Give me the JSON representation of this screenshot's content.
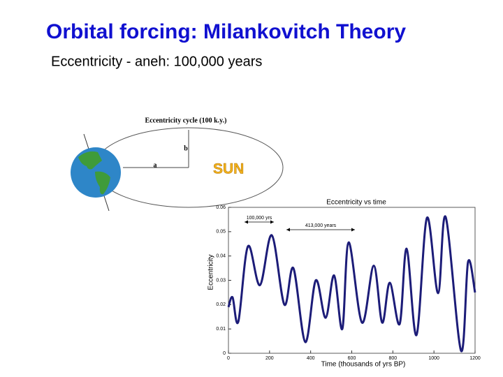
{
  "slide": {
    "title": "Orbital forcing: Milankovitch Theory",
    "subtitle": "Eccentricity - aneh: 100,000 years"
  },
  "diagram": {
    "label": "Eccentricity cycle (100 k.y.)",
    "a": "a",
    "b": "b",
    "sun": "SUN"
  },
  "chart_data": {
    "type": "line",
    "title": "Eccentricity vs time",
    "xlabel": "Time (thousands of yrs BP)",
    "ylabel": "Eccentricity",
    "x": [
      0,
      20,
      48,
      95,
      153,
      211,
      272,
      316,
      374,
      425,
      473,
      514,
      554,
      585,
      650,
      707,
      748,
      785,
      833,
      867,
      915,
      966,
      1020,
      1057,
      1132,
      1166,
      1200
    ],
    "values": [
      0.019,
      0.023,
      0.013,
      0.044,
      0.028,
      0.0485,
      0.02,
      0.035,
      0.0046,
      0.03,
      0.0146,
      0.032,
      0.01,
      0.0456,
      0.0126,
      0.036,
      0.0126,
      0.029,
      0.012,
      0.043,
      0.0075,
      0.0557,
      0.0247,
      0.056,
      0.001,
      0.0376,
      0.025
    ],
    "color": "#1c1c78",
    "xlim": [
      0,
      1200
    ],
    "xticks": [
      0,
      200,
      400,
      600,
      800,
      1000,
      1200
    ],
    "ylim": [
      0,
      0.06
    ],
    "yticks": [
      0,
      0.01,
      0.02,
      0.03,
      0.04,
      0.05,
      0.06
    ],
    "annotations": [
      "100,000 yrs",
      "413,000 years"
    ]
  }
}
